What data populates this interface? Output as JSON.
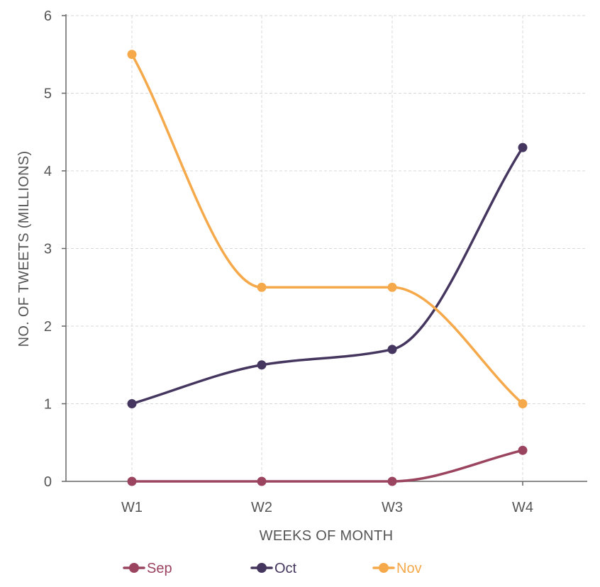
{
  "chart_data": {
    "type": "line",
    "title": "",
    "xlabel": "WEEKS OF MONTH",
    "ylabel": "NO. OF TWEETS (MILLIONS)",
    "categories": [
      "W1",
      "W2",
      "W3",
      "W4"
    ],
    "ylim": [
      0,
      6
    ],
    "yticks": [
      0,
      1,
      2,
      3,
      4,
      5,
      6
    ],
    "grid": true,
    "curve": "smooth",
    "legend_position": "bottom",
    "series": [
      {
        "name": "Sep",
        "color": "#9b4460",
        "values": [
          0,
          0,
          0,
          0.4
        ]
      },
      {
        "name": "Oct",
        "color": "#45365f",
        "values": [
          1,
          1.5,
          1.7,
          4.3
        ]
      },
      {
        "name": "Nov",
        "color": "#f5a94a",
        "values": [
          5.5,
          2.5,
          2.5,
          1
        ]
      }
    ]
  }
}
